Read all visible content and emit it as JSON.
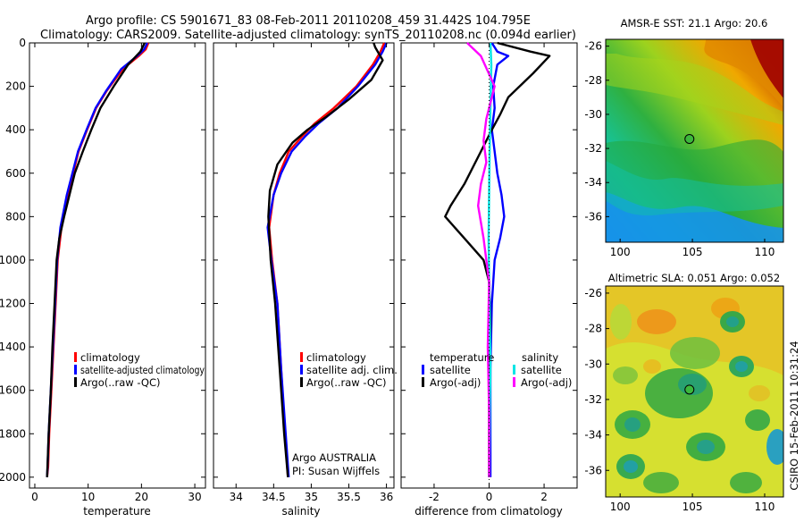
{
  "header": {
    "line1": "Argo profile: CS 5901671_83 08-Feb-2011 20110208_459 31.442S 104.795E",
    "line2": "Climatology: CARS2009. Satellite-adjusted climatology: synTS_20110208.nc (0.094d earlier)"
  },
  "side_label": "CSIRO 15-Feb-2011 10:31:24",
  "colors": {
    "red": "#ff0000",
    "blue": "#0000ff",
    "black": "#000000",
    "cyan": "#00e5e5",
    "magenta": "#ff00ff"
  },
  "chart_data": [
    {
      "type": "line",
      "name": "temperature-profile",
      "xlabel": "temperature",
      "xlim": [
        -1,
        32
      ],
      "ylim": [
        0,
        2050
      ],
      "xticks": [
        "0",
        "10",
        "20",
        "30"
      ],
      "xtick_values": [
        0,
        10,
        20,
        30
      ],
      "yticks": [
        "0",
        "200",
        "400",
        "600",
        "800",
        "1000",
        "1200",
        "1400",
        "1600",
        "1800",
        "2000"
      ],
      "ytick_values": [
        0,
        200,
        400,
        600,
        800,
        1000,
        1200,
        1400,
        1600,
        1800,
        2000
      ],
      "series": [
        {
          "name": "climatology",
          "color": "#ff0000",
          "x": [
            21.3,
            20.8,
            19.5,
            16.5,
            13.5,
            11.5,
            9.8,
            8.2,
            6.2,
            5.0,
            4.3,
            3.9,
            3.5,
            3.1,
            2.7,
            2.5,
            2.3
          ],
          "y": [
            0,
            30,
            60,
            120,
            220,
            300,
            400,
            500,
            700,
            850,
            1000,
            1200,
            1400,
            1600,
            1800,
            1950,
            2000
          ]
        },
        {
          "name": "satellite-adjusted climatology",
          "color": "#0000ff",
          "x": [
            21.1,
            20.5,
            19.2,
            16.2,
            13.4,
            11.4,
            9.7,
            8.1,
            6.0,
            4.8,
            4.2,
            3.8,
            3.4,
            3.0,
            2.6,
            2.4,
            2.3
          ],
          "y": [
            0,
            30,
            60,
            120,
            220,
            300,
            400,
            500,
            700,
            850,
            1000,
            1200,
            1400,
            1600,
            1800,
            1950,
            2000
          ]
        },
        {
          "name": "Argo(..raw -QC)",
          "color": "#000000",
          "x": [
            20.6,
            19.8,
            17.5,
            14.8,
            12.3,
            10.6,
            9.0,
            7.5,
            5.5,
            4.6,
            4.1,
            3.7,
            3.3,
            3.0,
            2.6,
            2.3
          ],
          "y": [
            0,
            40,
            100,
            200,
            300,
            400,
            500,
            600,
            800,
            900,
            1000,
            1200,
            1400,
            1600,
            1800,
            2000
          ]
        }
      ],
      "legend": [
        {
          "label": "climatology",
          "color": "#ff0000"
        },
        {
          "label": "satellite-adjusted climatology",
          "color": "#0000ff"
        },
        {
          "label": "Argo(..raw -QC)",
          "color": "#000000"
        }
      ]
    },
    {
      "type": "line",
      "name": "salinity-profile",
      "xlabel": "salinity",
      "xlim": [
        33.7,
        36.1
      ],
      "ylim": [
        0,
        2050
      ],
      "xticks": [
        "34",
        "34.5",
        "35",
        "35.5",
        "36"
      ],
      "xtick_values": [
        34,
        34.5,
        35,
        35.5,
        36
      ],
      "series": [
        {
          "name": "climatology",
          "color": "#ff0000",
          "x": [
            35.97,
            35.92,
            35.82,
            35.6,
            35.3,
            35.05,
            34.88,
            34.7,
            34.58,
            34.5,
            34.44,
            34.48,
            34.55,
            34.6,
            34.65,
            34.69
          ],
          "y": [
            0,
            40,
            100,
            200,
            300,
            370,
            430,
            500,
            600,
            700,
            850,
            1000,
            1200,
            1500,
            1800,
            2000
          ]
        },
        {
          "name": "satellite adj. clim.",
          "color": "#0000ff",
          "x": [
            36.0,
            35.95,
            35.85,
            35.62,
            35.35,
            35.1,
            34.92,
            34.74,
            34.6,
            34.5,
            34.42,
            34.47,
            34.55,
            34.6,
            34.66,
            34.7
          ],
          "y": [
            0,
            40,
            100,
            200,
            300,
            370,
            430,
            500,
            600,
            700,
            850,
            1000,
            1200,
            1500,
            1800,
            2000
          ]
        },
        {
          "name": "Argo(..raw -QC)",
          "color": "#000000",
          "x": [
            35.83,
            35.85,
            35.95,
            35.8,
            35.5,
            35.2,
            34.95,
            34.75,
            34.55,
            34.45,
            34.43,
            34.46,
            34.52,
            34.58,
            34.64,
            34.69
          ],
          "y": [
            0,
            20,
            80,
            170,
            260,
            340,
            400,
            460,
            560,
            680,
            800,
            1000,
            1200,
            1500,
            1800,
            2000
          ]
        }
      ],
      "legend": [
        {
          "label": "climatology",
          "color": "#ff0000"
        },
        {
          "label": "satellite adj. clim.",
          "color": "#0000ff"
        },
        {
          "label": "Argo(..raw -QC)",
          "color": "#000000"
        }
      ],
      "annotation": [
        "Argo AUSTRALIA",
        "PI: Susan Wijffels"
      ]
    },
    {
      "type": "line",
      "name": "difference-profile",
      "xlabel": "difference from climatology",
      "xlim": [
        -3.2,
        3.2
      ],
      "ylim": [
        0,
        2050
      ],
      "xticks": [
        "-2",
        "0",
        "2"
      ],
      "xtick_values": [
        -2,
        0,
        2
      ],
      "series": [
        {
          "name": "temperature satellite",
          "color": "#0000ff",
          "x": [
            0.1,
            0.3,
            0.7,
            0.3,
            0.15,
            0.2,
            0.1,
            0.2,
            0.3,
            0.45,
            0.55,
            0.4,
            0.2,
            0.1,
            0.05,
            0.05,
            0.05
          ],
          "y": [
            0,
            40,
            60,
            100,
            200,
            300,
            400,
            500,
            600,
            700,
            800,
            900,
            1000,
            1200,
            1500,
            1800,
            2000
          ]
        },
        {
          "name": "temperature Argo(-adj)",
          "color": "#000000",
          "x": [
            0.3,
            1.5,
            2.2,
            1.6,
            0.7,
            0.4,
            0.1,
            -0.3,
            -0.9,
            -1.4,
            -1.6,
            -0.9,
            -0.2,
            0.0,
            0.05,
            0.0,
            0.0
          ],
          "y": [
            0,
            40,
            60,
            140,
            250,
            330,
            400,
            500,
            650,
            750,
            800,
            900,
            1000,
            1100,
            1300,
            1600,
            2000
          ]
        },
        {
          "name": "salinity satellite",
          "color": "#00e5e5",
          "x": [
            0.05,
            0.08,
            0.05,
            0.02,
            0.0,
            -0.02,
            0.0,
            0.03,
            0.05,
            0.02,
            0.0
          ],
          "y": [
            0,
            100,
            300,
            500,
            700,
            900,
            1100,
            1300,
            1500,
            1800,
            2000
          ]
        },
        {
          "name": "salinity Argo(-adj)",
          "color": "#ff00ff",
          "x": [
            -0.8,
            -0.3,
            0.2,
            -0.1,
            -0.2,
            -0.1,
            -0.3,
            -0.4,
            -0.2,
            0.0,
            -0.05,
            0.0,
            0.0
          ],
          "y": [
            0,
            60,
            200,
            350,
            450,
            550,
            650,
            750,
            900,
            1100,
            1400,
            1700,
            2000
          ]
        }
      ],
      "legend_headers": [
        "temperature",
        "salinity"
      ],
      "legend": [
        {
          "label": "satellite",
          "color": "#0000ff"
        },
        {
          "label": "Argo(-adj)",
          "color": "#000000"
        },
        {
          "label": "satellite",
          "color": "#00e5e5"
        },
        {
          "label": "Argo(-adj)",
          "color": "#ff00ff"
        }
      ]
    },
    {
      "type": "heatmap",
      "name": "sst-map",
      "title": "AMSR-E SST: 21.1 Argo: 20.6",
      "xlim": [
        99,
        111.3
      ],
      "ylim": [
        -37.5,
        -25.6
      ],
      "xticks": [
        "100",
        "105",
        "110"
      ],
      "xtick_values": [
        100,
        105,
        110
      ],
      "yticks": [
        "-26",
        "-28",
        "-30",
        "-32",
        "-34",
        "-36"
      ],
      "ytick_values": [
        -26,
        -28,
        -30,
        -32,
        -34,
        -36
      ],
      "marker": {
        "lon": 104.795,
        "lat": -31.442
      }
    },
    {
      "type": "heatmap",
      "name": "sla-map",
      "title": "Altimetric SLA: 0.051 Argo: 0.052",
      "xlim": [
        99,
        111.3
      ],
      "ylim": [
        -37.5,
        -25.6
      ],
      "xticks": [
        "100",
        "105",
        "110"
      ],
      "xtick_values": [
        100,
        105,
        110
      ],
      "yticks": [
        "-26",
        "-28",
        "-30",
        "-32",
        "-34",
        "-36"
      ],
      "ytick_values": [
        -26,
        -28,
        -30,
        -32,
        -34,
        -36
      ],
      "marker": {
        "lon": 104.795,
        "lat": -31.442
      }
    }
  ]
}
